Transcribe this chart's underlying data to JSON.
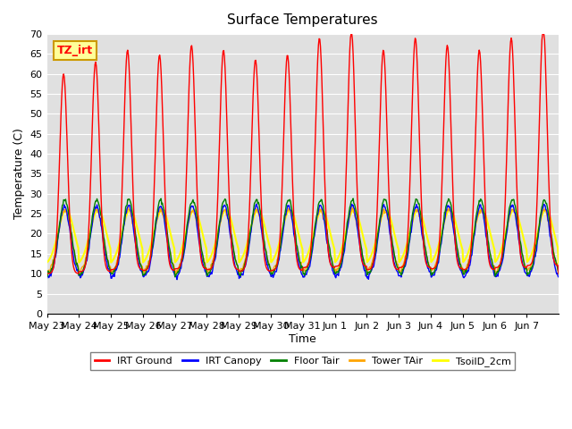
{
  "title": "Surface Temperatures",
  "ylabel": "Temperature (C)",
  "xlabel": "Time",
  "ylim": [
    0,
    70
  ],
  "yticks": [
    0,
    5,
    10,
    15,
    20,
    25,
    30,
    35,
    40,
    45,
    50,
    55,
    60,
    65,
    70
  ],
  "x_labels": [
    "May 23",
    "May 24",
    "May 25",
    "May 26",
    "May 27",
    "May 28",
    "May 29",
    "May 30",
    "May 31",
    "Jun 1",
    "Jun 2",
    "Jun 3",
    "Jun 4",
    "Jun 5",
    "Jun 6",
    "Jun 7"
  ],
  "legend_entries": [
    "IRT Ground",
    "IRT Canopy",
    "Floor Tair",
    "Tower TAir",
    "TsoilD_2cm"
  ],
  "legend_colors": [
    "red",
    "blue",
    "green",
    "orange",
    "yellow"
  ],
  "annotation_text": "TZ_irt",
  "annotation_box_color": "#ffff99",
  "annotation_box_edge": "#cc9900",
  "background_color": "#e0e0e0",
  "series_colors": {
    "irt_ground": "red",
    "irt_canopy": "blue",
    "floor_tair": "green",
    "tower_tair": "orange",
    "tsoil_2cm": "yellow"
  },
  "num_days": 16,
  "points_per_day": 48
}
